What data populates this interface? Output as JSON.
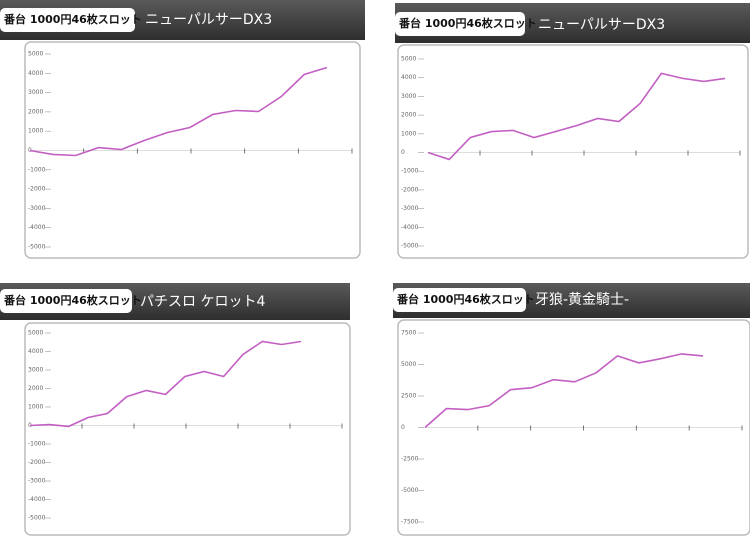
{
  "chart_data": [
    {
      "type": "line",
      "label": "番台 1000円46枚スロット",
      "title": "ニューパルサーDX3",
      "color": "#c35fc3",
      "values": [
        0,
        -200,
        -260,
        150,
        50,
        520,
        930,
        1190,
        1870,
        2070,
        2020,
        2800,
        3940,
        4300
      ],
      "ylim": [
        -5000,
        5000
      ],
      "yticks": [
        5000,
        4000,
        3000,
        2000,
        1000,
        0,
        -1000,
        -2000,
        -3000,
        -4000,
        -5000
      ]
    },
    {
      "type": "line",
      "label": "番台 1000円46枚スロット",
      "title": "ニューパルサーDX3",
      "color": "#c35fc3",
      "values": [
        0,
        -370,
        800,
        1120,
        1180,
        800,
        1120,
        1440,
        1820,
        1660,
        2620,
        4230,
        3960,
        3800,
        3960
      ],
      "ylim": [
        -5000,
        5000
      ],
      "yticks": [
        5000,
        4000,
        3000,
        2000,
        1000,
        0,
        -1000,
        -2000,
        -3000,
        -4000,
        -5000
      ]
    },
    {
      "type": "line",
      "label": "番台 1000円46枚スロット",
      "title": "パチスロ ケロット4",
      "color": "#c35fc3",
      "values": [
        0,
        50,
        -50,
        430,
        650,
        1560,
        1890,
        1680,
        2650,
        2920,
        2650,
        3840,
        4540,
        4380,
        4540
      ],
      "ylim": [
        -5000,
        5000
      ],
      "yticks": [
        5000,
        4000,
        3000,
        2000,
        1000,
        0,
        -1000,
        -2000,
        -3000,
        -4000,
        -5000
      ]
    },
    {
      "type": "line",
      "label": "番台 1000円46枚スロット",
      "title": "牙狼-黄金騎士-",
      "color": "#c35fc3",
      "values": [
        0,
        1500,
        1420,
        1740,
        3000,
        3160,
        3790,
        3630,
        4340,
        5680,
        5130,
        5450,
        5840,
        5680
      ],
      "ylim": [
        -7500,
        7500
      ],
      "yticks": [
        7500,
        5000,
        2500,
        0,
        -2500,
        -5000,
        -7500
      ]
    }
  ]
}
